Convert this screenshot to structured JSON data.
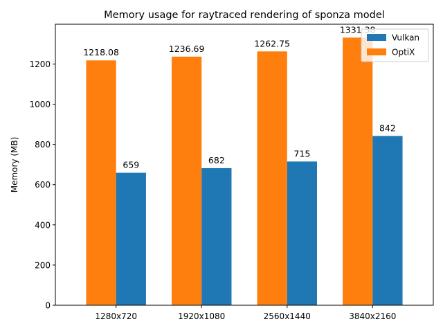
{
  "chart_data": {
    "type": "bar",
    "title": "Memory usage for raytraced rendering of sponza model",
    "xlabel": "",
    "ylabel": "Memory (MB)",
    "categories": [
      "1280x720",
      "1920x1080",
      "2560x1440",
      "3840x2160"
    ],
    "series": [
      {
        "name": "OptiX",
        "color": "#ff7f0e",
        "values": [
          1218.08,
          1236.69,
          1262.75,
          1331.38
        ],
        "labels": [
          "1218.08",
          "1236.69",
          "1262.75",
          "1331.38"
        ]
      },
      {
        "name": "Vulkan",
        "color": "#1f77b4",
        "values": [
          659,
          682,
          715,
          842
        ],
        "labels": [
          "659",
          "682",
          "715",
          "842"
        ]
      }
    ],
    "legend_order": [
      "Vulkan",
      "OptiX"
    ],
    "ylim": [
      0,
      1397.949
    ],
    "yticks": [
      0,
      200,
      400,
      600,
      800,
      1000,
      1200
    ],
    "ytick_labels": [
      "0",
      "200",
      "400",
      "600",
      "800",
      "1000",
      "1200"
    ],
    "grid": false,
    "legend_position": "top-right"
  }
}
